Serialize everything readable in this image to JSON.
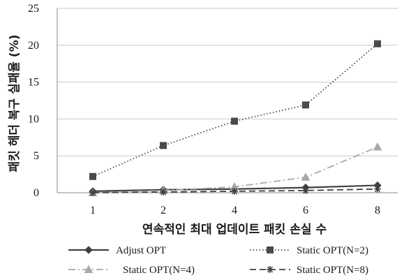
{
  "chart_data": {
    "type": "line",
    "categories": [
      "1",
      "2",
      "4",
      "6",
      "8"
    ],
    "xlabel": "연속적인 최대 업데이트 패킷 손실 수",
    "ylabel": "패킷 헤더 복구 실패율 (%)",
    "ylim": [
      0,
      25
    ],
    "yticks": [
      "0",
      "5",
      "10",
      "15",
      "20",
      "25"
    ],
    "grid": true,
    "legend_position": "bottom",
    "series": [
      {
        "name": "Adjust OPT",
        "values": [
          0.2,
          0.4,
          0.5,
          0.7,
          1.0
        ],
        "color": "#404040",
        "dash": "solid",
        "marker": "diamond"
      },
      {
        "name": "Static OPT(N=2)",
        "values": [
          2.2,
          6.4,
          9.7,
          11.9,
          20.2
        ],
        "color": "#4a4a4a",
        "dash": "dotted",
        "marker": "square"
      },
      {
        "name": "Static OPT(N=4)",
        "values": [
          0.0,
          0.3,
          0.8,
          2.1,
          6.2
        ],
        "color": "#a8a8a8",
        "dash": "dashdot",
        "marker": "triangle"
      },
      {
        "name": "Static OPT(N=8)",
        "values": [
          0.0,
          0.1,
          0.2,
          0.3,
          0.5
        ],
        "color": "#404040",
        "dash": "dashed",
        "marker": "star"
      }
    ]
  }
}
